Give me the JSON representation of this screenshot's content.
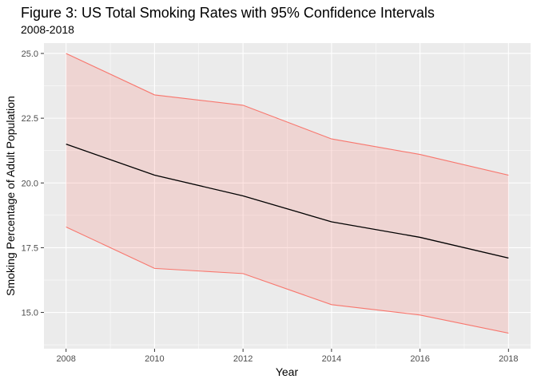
{
  "chart_data": {
    "type": "line",
    "title": "Figure 3: US Total Smoking Rates with 95% Confidence Intervals",
    "subtitle": "2008-2018",
    "xlabel": "Year",
    "ylabel": "Smoking Percentage of Adult Population",
    "x": [
      2008,
      2010,
      2012,
      2014,
      2016,
      2018
    ],
    "x_ticks": [
      "2008",
      "2010",
      "2012",
      "2014",
      "2016",
      "2018"
    ],
    "y_ticks": [
      "15.0",
      "17.5",
      "20.0",
      "22.5",
      "25.0"
    ],
    "xlim": [
      2007.5,
      2018.5
    ],
    "ylim": [
      13.6,
      25.4
    ],
    "series": [
      {
        "values": [
          21.5,
          20.3,
          19.5,
          18.5,
          17.9,
          17.1
        ],
        "color": "#000000"
      }
    ],
    "ribbon": {
      "upper": [
        25.0,
        23.4,
        23.0,
        21.7,
        21.1,
        20.3
      ],
      "lower": [
        18.3,
        16.7,
        16.5,
        15.3,
        14.9,
        14.2
      ],
      "line_color": "#f8766d",
      "fill_color": "#f8766d"
    },
    "grid": true,
    "panel_background": "#ebebeb",
    "legend": "none"
  }
}
